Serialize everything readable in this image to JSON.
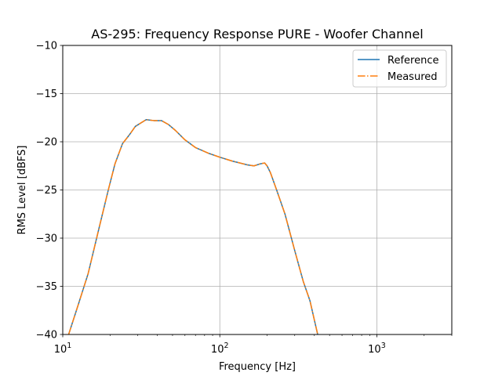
{
  "chart_data": {
    "type": "line",
    "title": "AS-295: Frequency Response PURE - Woofer Channel",
    "xlabel": "Frequency [Hz]",
    "ylabel": "RMS Level [dBFS]",
    "xscale": "log",
    "xlim": [
      10,
      3000
    ],
    "ylim": [
      -40,
      -10
    ],
    "grid": true,
    "legend_position": "top-right",
    "x_ticks": [
      {
        "value": 10,
        "base": "10",
        "exp": "1"
      },
      {
        "value": 100,
        "base": "10",
        "exp": "2"
      },
      {
        "value": 1000,
        "base": "10",
        "exp": "3"
      }
    ],
    "y_ticks": [
      {
        "value": -10,
        "label": "−10"
      },
      {
        "value": -15,
        "label": "−15"
      },
      {
        "value": -20,
        "label": "−20"
      },
      {
        "value": -25,
        "label": "−25"
      },
      {
        "value": -30,
        "label": "−30"
      },
      {
        "value": -35,
        "label": "−35"
      },
      {
        "value": -40,
        "label": "−40"
      }
    ],
    "x": [
      10.9,
      12.5,
      14.5,
      17.0,
      19.5,
      21.5,
      24.0,
      26.5,
      29.0,
      34.0,
      38.0,
      42.5,
      47.0,
      52.0,
      60.0,
      70.0,
      85.0,
      100.0,
      120.0,
      150.0,
      165.0,
      180.0,
      193.0,
      200.0,
      210.0,
      230.0,
      260.0,
      300.0,
      340.0,
      375.0,
      400.0,
      420.0
    ],
    "series": [
      {
        "name": "Reference",
        "color": "#1f77b4",
        "style": "solid",
        "values": [
          -40.0,
          -37.0,
          -33.7,
          -29.0,
          -25.0,
          -22.3,
          -20.2,
          -19.3,
          -18.4,
          -17.7,
          -17.8,
          -17.8,
          -18.2,
          -18.8,
          -19.8,
          -20.6,
          -21.2,
          -21.6,
          -22.0,
          -22.4,
          -22.5,
          -22.3,
          -22.2,
          -22.5,
          -23.2,
          -25.0,
          -27.5,
          -31.3,
          -34.5,
          -36.5,
          -38.5,
          -40.0
        ]
      },
      {
        "name": "Measured",
        "color": "#ff7f0e",
        "style": "dashdot",
        "values": [
          -40.0,
          -37.0,
          -33.7,
          -29.0,
          -25.0,
          -22.3,
          -20.2,
          -19.3,
          -18.4,
          -17.7,
          -17.8,
          -17.8,
          -18.2,
          -18.8,
          -19.8,
          -20.6,
          -21.2,
          -21.6,
          -22.0,
          -22.4,
          -22.5,
          -22.3,
          -22.2,
          -22.5,
          -23.2,
          -25.0,
          -27.5,
          -31.3,
          -34.5,
          -36.5,
          -38.5,
          -40.0
        ]
      }
    ]
  }
}
